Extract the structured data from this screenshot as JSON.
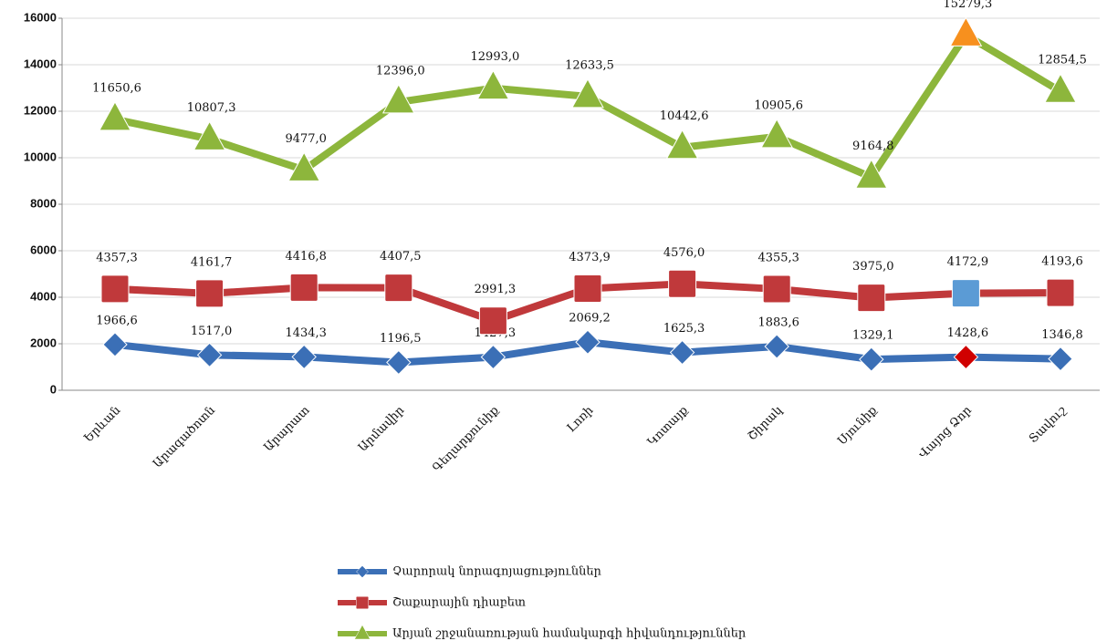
{
  "chart_data": {
    "type": "line",
    "categories": [
      "Երևան",
      "Արագածոտն",
      "Արարատ",
      "Արմավիր",
      "Գեղարքունիք",
      "Լոռի",
      "Կոտայք",
      "Շիրակ",
      "Սյունիք",
      "Վայոց Ձոր",
      "Տավուշ"
    ],
    "series": [
      {
        "name": "Չարորակ նորագոյացություններ",
        "color": "#3b6fb6",
        "marker": "diamond",
        "values": [
          1966.6,
          1517.0,
          1434.3,
          1196.5,
          1427.3,
          2069.2,
          1625.3,
          1883.6,
          1329.1,
          1428.6,
          1346.8
        ],
        "value_labels": [
          "1966,6",
          "1517,0",
          "1434,3",
          "1196,5",
          "1427,3",
          "2069,2",
          "1625,3",
          "1883,6",
          "1329,1",
          "1428,6",
          "1346,8"
        ],
        "point_colors": [
          null,
          null,
          null,
          null,
          null,
          null,
          null,
          null,
          null,
          "#d00000",
          null
        ]
      },
      {
        "name": "Շաքարային դիաբետ",
        "color": "#c0393b",
        "marker": "square",
        "values": [
          4357.3,
          4161.7,
          4416.8,
          4407.5,
          2991.3,
          4373.9,
          4576.0,
          4355.3,
          3975.0,
          4172.9,
          4193.6
        ],
        "value_labels": [
          "4357,3",
          "4161,7",
          "4416,8",
          "4407,5",
          "2991,3",
          "4373,9",
          "4576,0",
          "4355,3",
          "3975,0",
          "4172,9",
          "4193,6"
        ],
        "point_colors": [
          null,
          null,
          null,
          null,
          null,
          null,
          null,
          null,
          null,
          "#5b9bd5",
          null
        ]
      },
      {
        "name": "Արյան շրջանառության համակարգի հիվանդություններ",
        "color": "#8db63c",
        "marker": "triangle",
        "values": [
          11650.6,
          10807.3,
          9477.0,
          12396.0,
          12993.0,
          12633.5,
          10442.6,
          10905.6,
          9164.8,
          15279.3,
          12854.5
        ],
        "value_labels": [
          "11650,6",
          "10807,3",
          "9477,0",
          "12396,0",
          "12993,0",
          "12633,5",
          "10442,6",
          "10905,6",
          "9164,8",
          "15279,3",
          "12854,5"
        ],
        "point_colors": [
          null,
          null,
          null,
          null,
          null,
          null,
          null,
          null,
          null,
          "#f7901e",
          null
        ]
      }
    ],
    "ylim": [
      0,
      16000
    ],
    "yticks": [
      0,
      2000,
      4000,
      6000,
      8000,
      10000,
      12000,
      14000,
      16000
    ],
    "grid": true,
    "legend": "bottom"
  }
}
